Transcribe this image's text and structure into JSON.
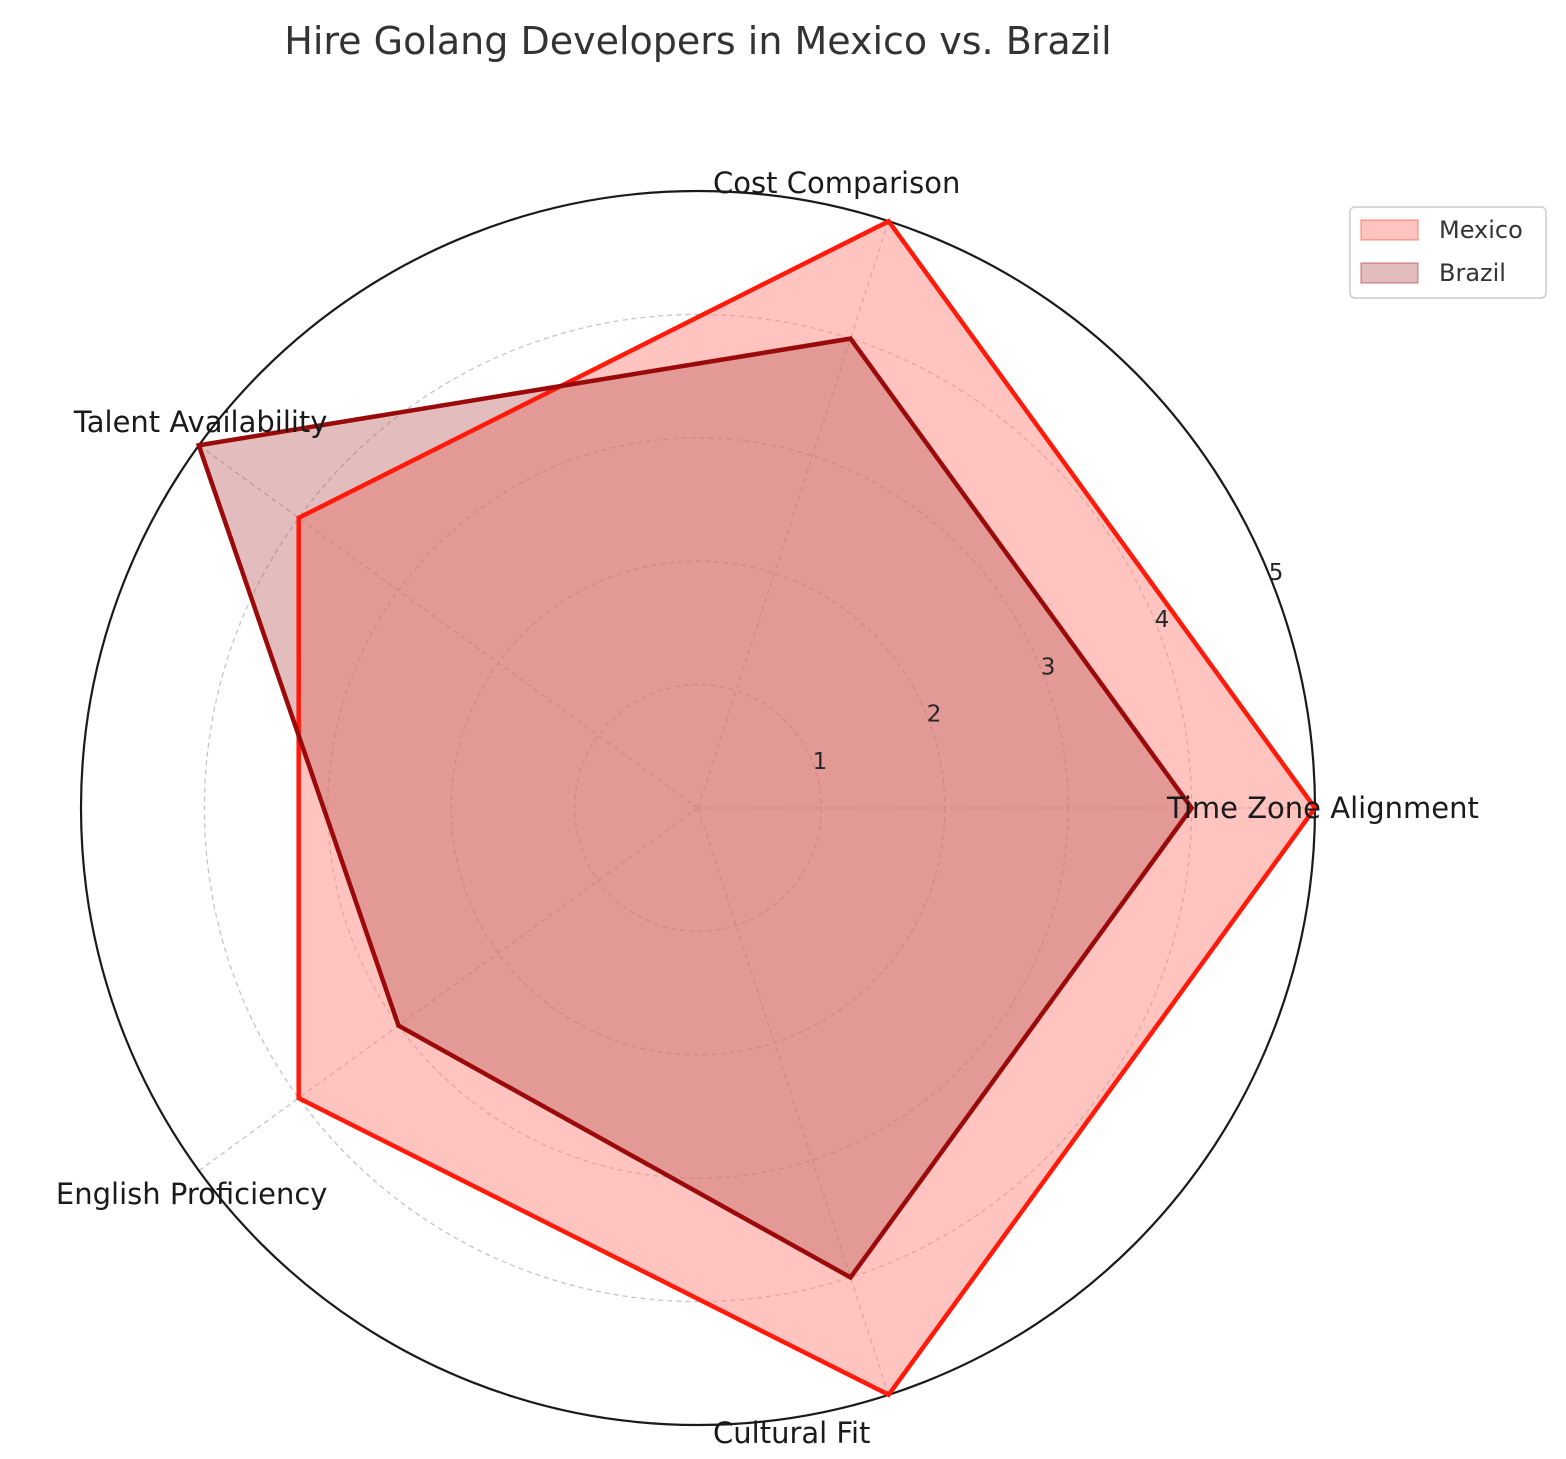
{
  "chart_data": {
    "type": "radar",
    "title": "Hire Golang Developers in Mexico vs. Brazil",
    "categories": [
      "Time Zone Alignment",
      "Cost Comparison",
      "Talent Availability",
      "English Proficiency",
      "Cultural Fit"
    ],
    "rlim": [
      0,
      5
    ],
    "rticks": [
      1,
      2,
      3,
      4,
      5
    ],
    "grid": true,
    "legend_position": "top-right",
    "series": [
      {
        "name": "Mexico",
        "values": [
          5,
          5,
          4,
          4,
          5
        ],
        "line_color": "#ff1a0a",
        "fill_color": "#ff8a80",
        "fill_opacity": 0.5
      },
      {
        "name": "Brazil",
        "values": [
          4,
          4,
          5,
          3,
          4
        ],
        "line_color": "#9b0a0a",
        "fill_color": "#b85a5a",
        "fill_opacity": 0.4
      }
    ]
  }
}
